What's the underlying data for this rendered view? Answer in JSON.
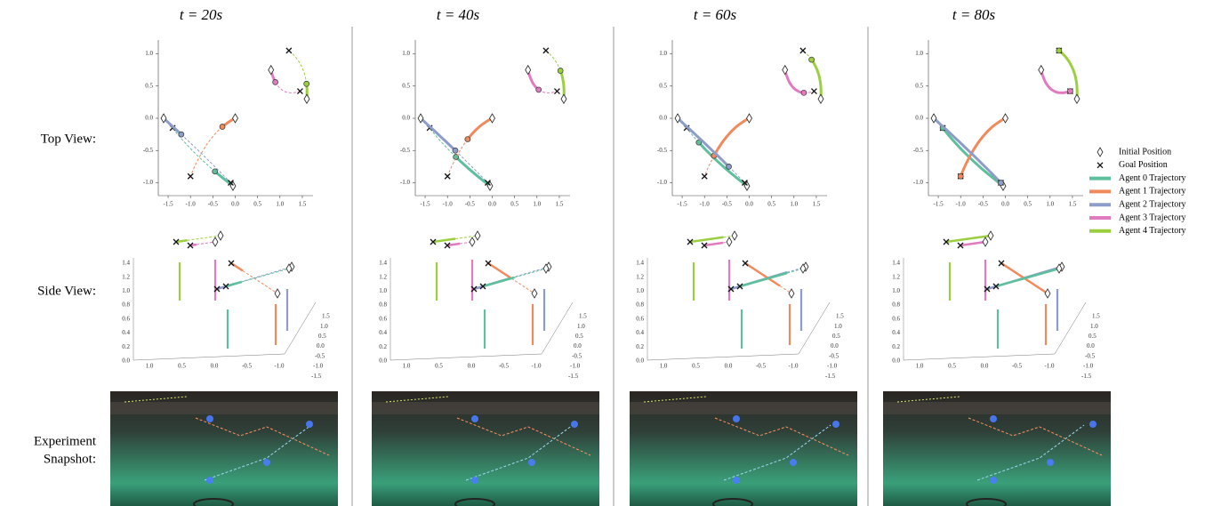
{
  "columns": [
    {
      "title": "t = 20s"
    },
    {
      "title": "t = 40s"
    },
    {
      "title": "t = 60s"
    },
    {
      "title": "t = 80s"
    }
  ],
  "rows": [
    {
      "label_lines": [
        "Top View:"
      ]
    },
    {
      "label_lines": [
        "Side View:"
      ]
    },
    {
      "label_lines": [
        "Experiment",
        "Snapshot:"
      ]
    }
  ],
  "legend": [
    {
      "label": "Initial Position",
      "marker": "diamond"
    },
    {
      "label": "Goal Position",
      "marker": "cross"
    },
    {
      "label": "Agent 0 Trajectory",
      "color": "#5dbf9c"
    },
    {
      "label": "Agent 1 Trajectory",
      "color": "#f08a5d"
    },
    {
      "label": "Agent 2 Trajectory",
      "color": "#8e9cc9"
    },
    {
      "label": "Agent 3 Trajectory",
      "color": "#e27ac0"
    },
    {
      "label": "Agent 4 Trajectory",
      "color": "#9ccf3f"
    }
  ],
  "top_view": {
    "xticks": [
      "-1.5",
      "-1.0",
      "-0.5",
      "0.0",
      "0.5",
      "1.0",
      "1.5"
    ],
    "yticks": [
      "1.0",
      "0.5",
      "0.0",
      "-0.5",
      "-1.0"
    ]
  },
  "side_view": {
    "zticks": [
      "1.4",
      "1.2",
      "1.0",
      "0.8",
      "0.6",
      "0.4",
      "0.2",
      "0.0"
    ],
    "xticks": [
      "1.0",
      "0.5",
      "0.0",
      "-0.5",
      "-1.0"
    ],
    "yticks": [
      "1.5",
      "1.0",
      "0.5",
      "0.0",
      "-0.5",
      "-1.0",
      "-1.5"
    ]
  }
}
